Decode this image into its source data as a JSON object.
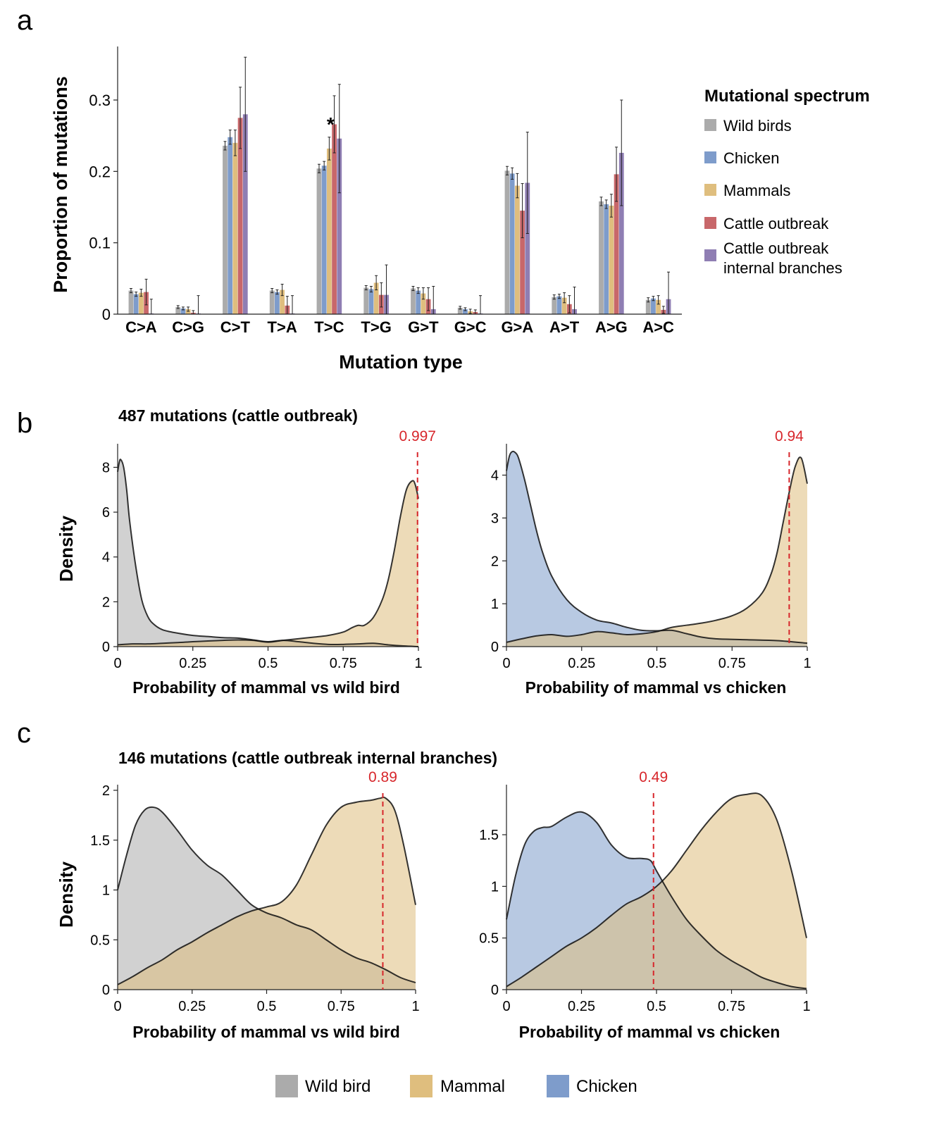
{
  "panels": {
    "a": "a",
    "b": "b",
    "c": "c"
  },
  "legend_a": {
    "title": "Mutational spectrum",
    "items": [
      {
        "label": "Wild birds",
        "color": "#ababab"
      },
      {
        "label": "Chicken",
        "color": "#7e9ccb"
      },
      {
        "label": "Mammals",
        "color": "#dfbe7e"
      },
      {
        "label": "Cattle outbreak",
        "color": "#c8676a"
      },
      {
        "label": "Cattle outbreak",
        "label2": "internal branches",
        "color": "#8f7eb3"
      }
    ]
  },
  "bottom_legend": {
    "items": [
      {
        "label": "Wild bird",
        "color": "#ababab"
      },
      {
        "label": "Mammal",
        "color": "#dfbe7e"
      },
      {
        "label": "Chicken",
        "color": "#7e9ccb"
      }
    ]
  },
  "titles": {
    "b": "487 mutations (cattle outbreak)",
    "c": "146 mutations (cattle outbreak internal branches)"
  },
  "chart_data": [
    {
      "id": "a",
      "type": "bar",
      "xlabel": "Mutation type",
      "ylabel": "Proportion of mutations",
      "ylim": [
        0,
        0.375
      ],
      "yticks": [
        0,
        0.1,
        0.2,
        0.3
      ],
      "ytick_labels": [
        "0",
        "0.1",
        "0.2",
        "0.3"
      ],
      "categories": [
        "C>A",
        "C>G",
        "C>T",
        "T>A",
        "T>C",
        "T>G",
        "G>T",
        "G>C",
        "G>A",
        "A>T",
        "A>G",
        "A>C"
      ],
      "series": [
        {
          "name": "Wild birds",
          "color": "#ababab",
          "values": [
            0.033,
            0.01,
            0.236,
            0.033,
            0.204,
            0.037,
            0.036,
            0.009,
            0.201,
            0.024,
            0.158,
            0.02
          ],
          "err": [
            0.003,
            0.002,
            0.006,
            0.003,
            0.006,
            0.003,
            0.003,
            0.002,
            0.006,
            0.003,
            0.006,
            0.003
          ]
        },
        {
          "name": "Chicken",
          "color": "#7e9ccb",
          "values": [
            0.028,
            0.008,
            0.248,
            0.031,
            0.208,
            0.035,
            0.033,
            0.007,
            0.197,
            0.025,
            0.154,
            0.022
          ],
          "err": [
            0.003,
            0.002,
            0.01,
            0.003,
            0.006,
            0.004,
            0.004,
            0.002,
            0.008,
            0.003,
            0.006,
            0.003
          ]
        },
        {
          "name": "Mammals",
          "color": "#dfbe7e",
          "values": [
            0.03,
            0.007,
            0.24,
            0.034,
            0.232,
            0.044,
            0.029,
            0.004,
            0.18,
            0.023,
            0.152,
            0.02
          ],
          "err": [
            0.005,
            0.003,
            0.018,
            0.008,
            0.016,
            0.01,
            0.008,
            0.003,
            0.017,
            0.007,
            0.016,
            0.006
          ]
        },
        {
          "name": "Cattle outbreak",
          "color": "#c8676a",
          "values": [
            0.031,
            0.002,
            0.275,
            0.012,
            0.266,
            0.027,
            0.021,
            0.003,
            0.145,
            0.014,
            0.196,
            0.006
          ],
          "err": [
            0.018,
            0.003,
            0.043,
            0.013,
            0.04,
            0.017,
            0.016,
            0.003,
            0.038,
            0.012,
            0.038,
            0.005
          ]
        },
        {
          "name": "Cattle outbreak internal branches",
          "color": "#8f7eb3",
          "values": [
            0.001,
            0.001,
            0.28,
            0.001,
            0.246,
            0.027,
            0.007,
            0.001,
            0.184,
            0.007,
            0.226,
            0.021
          ],
          "err": [
            0.02,
            0.025,
            0.08,
            0.025,
            0.076,
            0.042,
            0.032,
            0.025,
            0.071,
            0.031,
            0.074,
            0.038
          ]
        }
      ],
      "annotation": {
        "text": "*",
        "category": "T>C"
      }
    },
    {
      "id": "b-left",
      "type": "area",
      "xlabel": "Probability of mammal vs wild bird",
      "ylabel": "Density",
      "xlim": [
        0,
        1
      ],
      "ylim": [
        0,
        8.8
      ],
      "xticks": [
        0,
        0.25,
        0.5,
        0.75,
        1
      ],
      "xtick_labels": [
        "0",
        "0.25",
        "0.5",
        "0.75",
        "1"
      ],
      "yticks": [
        0,
        2,
        4,
        6,
        8
      ],
      "ytick_labels": [
        "0",
        "2",
        "4",
        "6",
        "8"
      ],
      "threshold": {
        "value": 0.997,
        "label": "0.997"
      },
      "series": [
        {
          "name": "Wild bird",
          "color": "#ababab",
          "x": [
            0,
            0.005,
            0.01,
            0.02,
            0.03,
            0.04,
            0.06,
            0.08,
            0.1,
            0.12,
            0.15,
            0.2,
            0.25,
            0.3,
            0.35,
            0.4,
            0.45,
            0.5,
            0.55,
            0.6,
            0.65,
            0.7,
            0.75,
            0.8,
            0.85,
            0.9,
            0.95,
            1
          ],
          "y": [
            7.8,
            8.2,
            8.35,
            8.0,
            7.0,
            5.6,
            3.6,
            2.1,
            1.35,
            1.0,
            0.75,
            0.6,
            0.5,
            0.45,
            0.4,
            0.38,
            0.3,
            0.22,
            0.28,
            0.22,
            0.15,
            0.1,
            0.1,
            0.12,
            0.15,
            0.08,
            0.03,
            0.0
          ]
        },
        {
          "name": "Mammal",
          "color": "#dfbe7e",
          "x": [
            0,
            0.05,
            0.1,
            0.15,
            0.2,
            0.25,
            0.3,
            0.35,
            0.4,
            0.45,
            0.5,
            0.55,
            0.6,
            0.65,
            0.7,
            0.75,
            0.78,
            0.8,
            0.82,
            0.85,
            0.88,
            0.9,
            0.92,
            0.94,
            0.96,
            0.98,
            0.99,
            1
          ],
          "y": [
            0.08,
            0.12,
            0.12,
            0.15,
            0.18,
            0.22,
            0.25,
            0.28,
            0.3,
            0.28,
            0.2,
            0.28,
            0.35,
            0.42,
            0.5,
            0.65,
            0.85,
            0.95,
            0.95,
            1.3,
            2.1,
            3.0,
            4.3,
            5.8,
            7.0,
            7.4,
            7.2,
            6.6
          ]
        }
      ]
    },
    {
      "id": "b-right",
      "type": "area",
      "xlabel": "Probability of mammal vs chicken",
      "ylabel": "",
      "xlim": [
        0,
        1
      ],
      "ylim": [
        0,
        4.6
      ],
      "xticks": [
        0,
        0.25,
        0.5,
        0.75,
        1
      ],
      "xtick_labels": [
        "0",
        "0.25",
        "0.5",
        "0.75",
        "1"
      ],
      "yticks": [
        0,
        1,
        2,
        3,
        4
      ],
      "ytick_labels": [
        "0",
        "1",
        "2",
        "3",
        "4"
      ],
      "threshold": {
        "value": 0.94,
        "label": "0.94"
      },
      "series": [
        {
          "name": "Chicken",
          "color": "#7e9ccb",
          "x": [
            0,
            0.01,
            0.02,
            0.03,
            0.04,
            0.06,
            0.08,
            0.1,
            0.12,
            0.15,
            0.2,
            0.25,
            0.3,
            0.35,
            0.4,
            0.45,
            0.5,
            0.55,
            0.6,
            0.65,
            0.7,
            0.8,
            0.9,
            1
          ],
          "y": [
            4.1,
            4.45,
            4.55,
            4.52,
            4.4,
            3.9,
            3.3,
            2.7,
            2.2,
            1.65,
            1.1,
            0.8,
            0.62,
            0.55,
            0.45,
            0.38,
            0.37,
            0.38,
            0.3,
            0.22,
            0.18,
            0.16,
            0.14,
            0.08
          ]
        },
        {
          "name": "Mammal",
          "color": "#dfbe7e",
          "x": [
            0,
            0.05,
            0.1,
            0.15,
            0.2,
            0.25,
            0.3,
            0.35,
            0.4,
            0.45,
            0.5,
            0.55,
            0.6,
            0.65,
            0.7,
            0.75,
            0.8,
            0.85,
            0.88,
            0.9,
            0.92,
            0.94,
            0.96,
            0.98,
            1
          ],
          "y": [
            0.1,
            0.18,
            0.25,
            0.28,
            0.24,
            0.28,
            0.35,
            0.32,
            0.28,
            0.3,
            0.35,
            0.45,
            0.5,
            0.55,
            0.62,
            0.72,
            0.9,
            1.25,
            1.7,
            2.2,
            2.9,
            3.6,
            4.2,
            4.4,
            3.8
          ]
        }
      ]
    },
    {
      "id": "c-left",
      "type": "area",
      "xlabel": "Probability of mammal vs wild bird",
      "ylabel": "Density",
      "xlim": [
        0,
        1
      ],
      "ylim": [
        0,
        2.0
      ],
      "xticks": [
        0,
        0.25,
        0.5,
        0.75,
        1
      ],
      "xtick_labels": [
        "0",
        "0.25",
        "0.5",
        "0.75",
        "1"
      ],
      "yticks": [
        0,
        0.5,
        1,
        1.5,
        2
      ],
      "ytick_labels": [
        "0",
        "0.5",
        "1",
        "1.5",
        "2"
      ],
      "threshold": {
        "value": 0.89,
        "label": "0.89"
      },
      "series": [
        {
          "name": "Wild bird",
          "color": "#ababab",
          "x": [
            0,
            0.03,
            0.06,
            0.09,
            0.12,
            0.15,
            0.2,
            0.25,
            0.3,
            0.35,
            0.4,
            0.45,
            0.5,
            0.55,
            0.6,
            0.65,
            0.7,
            0.75,
            0.8,
            0.85,
            0.9,
            0.95,
            1
          ],
          "y": [
            1.0,
            1.35,
            1.65,
            1.8,
            1.83,
            1.78,
            1.6,
            1.4,
            1.25,
            1.15,
            1.0,
            0.85,
            0.77,
            0.72,
            0.65,
            0.6,
            0.5,
            0.4,
            0.32,
            0.27,
            0.2,
            0.12,
            0.07
          ]
        },
        {
          "name": "Mammal",
          "color": "#dfbe7e",
          "x": [
            0,
            0.05,
            0.1,
            0.15,
            0.2,
            0.25,
            0.3,
            0.35,
            0.4,
            0.45,
            0.5,
            0.55,
            0.6,
            0.65,
            0.7,
            0.75,
            0.8,
            0.85,
            0.88,
            0.9,
            0.93,
            0.96,
            1
          ],
          "y": [
            0.05,
            0.13,
            0.22,
            0.3,
            0.4,
            0.48,
            0.57,
            0.65,
            0.73,
            0.79,
            0.83,
            0.88,
            1.05,
            1.35,
            1.65,
            1.83,
            1.88,
            1.9,
            1.92,
            1.92,
            1.8,
            1.45,
            0.85
          ]
        }
      ]
    },
    {
      "id": "c-right",
      "type": "area",
      "xlabel": "Probability of mammal vs chicken",
      "ylabel": "",
      "xlim": [
        0,
        1
      ],
      "ylim": [
        0,
        1.93
      ],
      "xticks": [
        0,
        0.25,
        0.5,
        0.75,
        1
      ],
      "xtick_labels": [
        "0",
        "0.25",
        "0.5",
        "0.75",
        "1"
      ],
      "yticks": [
        0,
        0.5,
        1,
        1.5
      ],
      "ytick_labels": [
        "0",
        "0.5",
        "1",
        "1.5"
      ],
      "threshold": {
        "value": 0.49,
        "label": "0.49"
      },
      "series": [
        {
          "name": "Chicken",
          "color": "#7e9ccb",
          "x": [
            0,
            0.03,
            0.06,
            0.09,
            0.12,
            0.15,
            0.2,
            0.25,
            0.3,
            0.35,
            0.4,
            0.45,
            0.48,
            0.5,
            0.55,
            0.6,
            0.65,
            0.7,
            0.75,
            0.8,
            0.85,
            0.9,
            0.95,
            1
          ],
          "y": [
            0.68,
            1.1,
            1.4,
            1.53,
            1.57,
            1.58,
            1.67,
            1.72,
            1.62,
            1.4,
            1.28,
            1.27,
            1.25,
            1.15,
            0.9,
            0.68,
            0.52,
            0.38,
            0.28,
            0.2,
            0.12,
            0.07,
            0.03,
            0.01
          ]
        },
        {
          "name": "Mammal",
          "color": "#dfbe7e",
          "x": [
            0,
            0.05,
            0.1,
            0.15,
            0.2,
            0.25,
            0.3,
            0.35,
            0.4,
            0.45,
            0.5,
            0.55,
            0.6,
            0.65,
            0.7,
            0.75,
            0.8,
            0.85,
            0.9,
            0.95,
            1
          ],
          "y": [
            0.03,
            0.12,
            0.22,
            0.32,
            0.42,
            0.5,
            0.6,
            0.72,
            0.83,
            0.9,
            1.0,
            1.15,
            1.35,
            1.55,
            1.72,
            1.85,
            1.89,
            1.88,
            1.65,
            1.15,
            0.5
          ]
        }
      ]
    }
  ]
}
